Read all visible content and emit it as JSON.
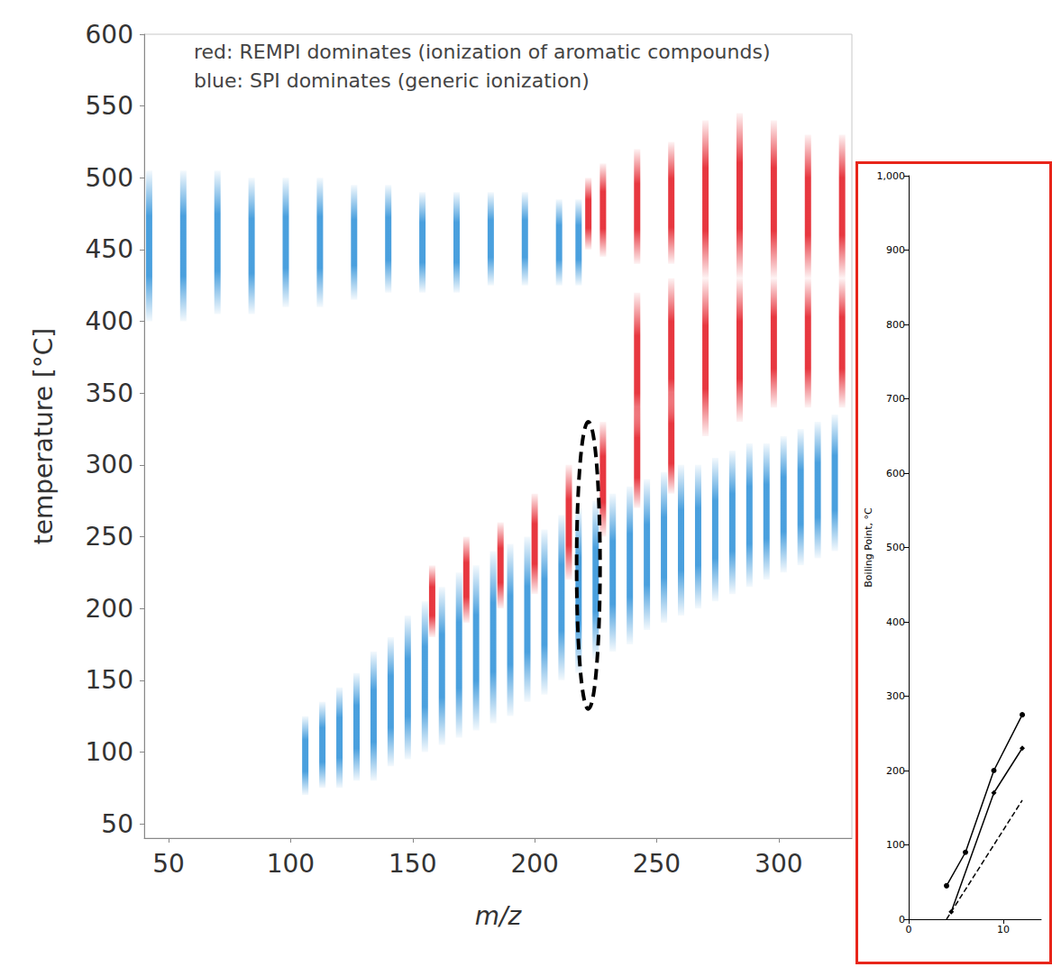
{
  "chart_data": [
    {
      "type": "streak",
      "x_label": "m/z",
      "y_label": "temperature [°C]",
      "xlim": [
        40,
        330
      ],
      "xticks": [
        50,
        100,
        150,
        200,
        250,
        300
      ],
      "ylim": [
        40,
        600
      ],
      "yticks": [
        50,
        100,
        150,
        200,
        250,
        300,
        350,
        400,
        450,
        500,
        550,
        600
      ],
      "grid": false,
      "legend": "top-left",
      "series": [
        {
          "name": "red: REMPI dominates (ionization of aromatic compounds)",
          "color": "#e3141e",
          "values": [
            [
              222,
              450,
              500
            ],
            [
              228,
              445,
              510
            ],
            [
              242,
              440,
              520
            ],
            [
              256,
              440,
              525
            ],
            [
              270,
              430,
              540
            ],
            [
              284,
              430,
              545
            ],
            [
              298,
              430,
              540
            ],
            [
              312,
              430,
              530
            ],
            [
              326,
              430,
              530
            ],
            [
              242,
              320,
              420
            ],
            [
              256,
              330,
              430
            ],
            [
              270,
              320,
              430
            ],
            [
              284,
              330,
              430
            ],
            [
              298,
              340,
              430
            ],
            [
              312,
              340,
              430
            ],
            [
              326,
              340,
              430
            ],
            [
              158,
              180,
              230
            ],
            [
              172,
              190,
              250
            ],
            [
              186,
              200,
              260
            ],
            [
              200,
              210,
              280
            ],
            [
              214,
              220,
              300
            ],
            [
              228,
              250,
              330
            ],
            [
              242,
              270,
              340
            ],
            [
              256,
              280,
              350
            ]
          ]
        },
        {
          "name": "blue: SPI dominates (generic ionization)",
          "color": "#2a8fd8",
          "values": [
            [
              42,
              400,
              505
            ],
            [
              56,
              400,
              505
            ],
            [
              70,
              405,
              505
            ],
            [
              84,
              405,
              500
            ],
            [
              98,
              410,
              500
            ],
            [
              112,
              410,
              500
            ],
            [
              126,
              415,
              495
            ],
            [
              140,
              420,
              495
            ],
            [
              154,
              420,
              490
            ],
            [
              168,
              420,
              490
            ],
            [
              182,
              425,
              490
            ],
            [
              196,
              425,
              490
            ],
            [
              210,
              425,
              485
            ],
            [
              218,
              425,
              485
            ],
            [
              106,
              70,
              125
            ],
            [
              113,
              75,
              135
            ],
            [
              120,
              75,
              145
            ],
            [
              127,
              80,
              155
            ],
            [
              134,
              80,
              170
            ],
            [
              141,
              90,
              180
            ],
            [
              148,
              95,
              195
            ],
            [
              155,
              100,
              205
            ],
            [
              162,
              105,
              215
            ],
            [
              169,
              110,
              225
            ],
            [
              176,
              115,
              230
            ],
            [
              183,
              120,
              240
            ],
            [
              190,
              125,
              245
            ],
            [
              197,
              135,
              250
            ],
            [
              204,
              140,
              255
            ],
            [
              211,
              150,
              265
            ],
            [
              218,
              155,
              270
            ],
            [
              225,
              165,
              275
            ],
            [
              232,
              170,
              280
            ],
            [
              239,
              175,
              285
            ],
            [
              246,
              185,
              290
            ],
            [
              253,
              190,
              295
            ],
            [
              260,
              195,
              300
            ],
            [
              267,
              200,
              300
            ],
            [
              274,
              205,
              305
            ],
            [
              281,
              210,
              310
            ],
            [
              288,
              215,
              315
            ],
            [
              295,
              220,
              315
            ],
            [
              302,
              225,
              320
            ],
            [
              309,
              230,
              325
            ],
            [
              316,
              235,
              330
            ],
            [
              323,
              240,
              335
            ]
          ]
        }
      ],
      "highlight": {
        "x": 222,
        "y": [
          130,
          330
        ]
      }
    },
    {
      "type": "line",
      "y_label": "Boiling Point, °C",
      "xlim": [
        0,
        14
      ],
      "xticks": [
        0,
        10
      ],
      "ylim": [
        0,
        1000
      ],
      "yticks": [
        0,
        100,
        200,
        300,
        400,
        500,
        600,
        700,
        800,
        900,
        1000
      ],
      "grid": false,
      "series": [
        {
          "color": "#000000",
          "line_style": "solid",
          "marker": "circle",
          "values": [
            [
              4,
              45
            ],
            [
              6,
              90
            ],
            [
              9,
              200
            ],
            [
              12,
              275
            ]
          ]
        },
        {
          "color": "#000000",
          "line_style": "solid",
          "marker": "diamond",
          "values": [
            [
              4.5,
              10
            ],
            [
              9,
              170
            ],
            [
              12,
              230
            ]
          ]
        },
        {
          "color": "#000000",
          "line_style": "dashed",
          "marker": "none",
          "values": [
            [
              4,
              0
            ],
            [
              12,
              160
            ]
          ]
        }
      ]
    }
  ]
}
